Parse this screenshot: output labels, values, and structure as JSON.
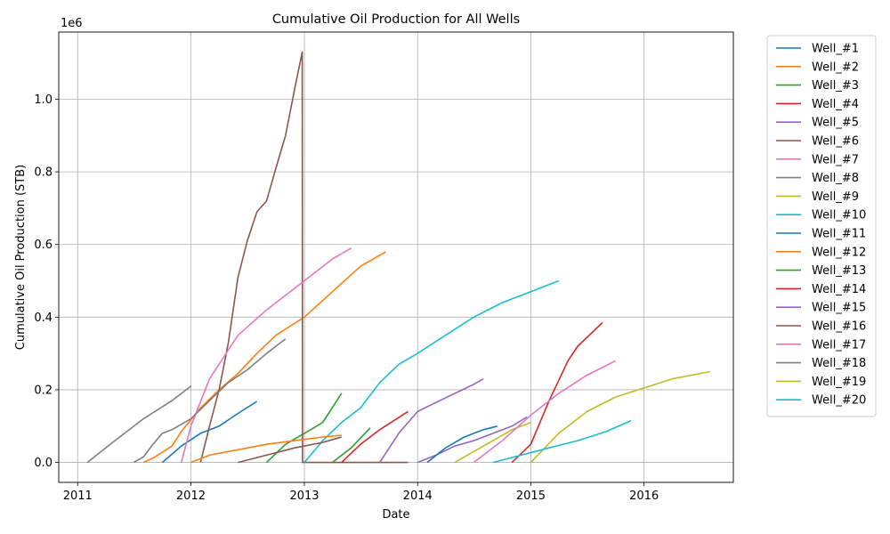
{
  "chart_data": {
    "type": "line",
    "title": "Cumulative Oil Production for All Wells",
    "xlabel": "Date",
    "ylabel": "Cumulative Oil Production (STB)",
    "y_offset_text": "1e6",
    "xlim": [
      "2010-11-01",
      "2016-10-15"
    ],
    "ylim": [
      -55000,
      1185000
    ],
    "x_ticks": [
      {
        "date": "2011-01-01",
        "label": "2011"
      },
      {
        "date": "2012-01-01",
        "label": "2012"
      },
      {
        "date": "2013-01-01",
        "label": "2013"
      },
      {
        "date": "2014-01-01",
        "label": "2014"
      },
      {
        "date": "2015-01-01",
        "label": "2015"
      },
      {
        "date": "2016-01-01",
        "label": "2016"
      }
    ],
    "y_ticks": [
      {
        "value": 0,
        "label": "0.0"
      },
      {
        "value": 200000,
        "label": "0.2"
      },
      {
        "value": 400000,
        "label": "0.4"
      },
      {
        "value": 600000,
        "label": "0.6"
      },
      {
        "value": 800000,
        "label": "0.8"
      },
      {
        "value": 1000000,
        "label": "1.0"
      }
    ],
    "grid": true,
    "legend_position": "outside-right",
    "series": [
      {
        "name": "Well_#1",
        "color": "#1f77b4",
        "points": [
          [
            "2011-10-01",
            0
          ],
          [
            "2011-12-01",
            45000
          ],
          [
            "2012-02-01",
            80000
          ],
          [
            "2012-04-01",
            100000
          ],
          [
            "2012-06-01",
            135000
          ],
          [
            "2012-08-01",
            168000
          ]
        ]
      },
      {
        "name": "Well_#2",
        "color": "#ff7f0e",
        "points": [
          [
            "2011-08-01",
            0
          ],
          [
            "2011-09-01",
            12000
          ],
          [
            "2011-10-01",
            28000
          ],
          [
            "2011-11-01",
            45000
          ],
          [
            "2011-12-01",
            85000
          ],
          [
            "2012-02-01",
            150000
          ],
          [
            "2012-04-01",
            200000
          ],
          [
            "2012-06-01",
            245000
          ],
          [
            "2012-08-01",
            300000
          ],
          [
            "2012-10-01",
            350000
          ],
          [
            "2013-01-01",
            400000
          ],
          [
            "2013-04-01",
            470000
          ],
          [
            "2013-07-01",
            540000
          ],
          [
            "2013-09-20",
            580000
          ]
        ]
      },
      {
        "name": "Well_#3",
        "color": "#2ca02c",
        "points": [
          [
            "2012-09-01",
            0
          ],
          [
            "2012-11-01",
            50000
          ],
          [
            "2013-01-01",
            80000
          ],
          [
            "2013-03-01",
            110000
          ],
          [
            "2013-05-01",
            190000
          ]
        ]
      },
      {
        "name": "Well_#4",
        "color": "#d62728",
        "points": [
          [
            "2014-11-01",
            0
          ],
          [
            "2015-01-01",
            50000
          ],
          [
            "2015-03-01",
            170000
          ],
          [
            "2015-05-01",
            280000
          ],
          [
            "2015-06-01",
            320000
          ],
          [
            "2015-08-20",
            385000
          ]
        ]
      },
      {
        "name": "Well_#5",
        "color": "#9467bd",
        "points": [
          [
            "2014-01-01",
            0
          ],
          [
            "2014-03-01",
            20000
          ],
          [
            "2014-05-01",
            45000
          ],
          [
            "2014-07-01",
            60000
          ],
          [
            "2014-09-01",
            80000
          ],
          [
            "2014-11-01",
            100000
          ],
          [
            "2014-12-20",
            125000
          ]
        ]
      },
      {
        "name": "Well_#6",
        "color": "#8c564b",
        "points": [
          [
            "2012-02-01",
            0
          ],
          [
            "2012-03-01",
            100000
          ],
          [
            "2012-04-01",
            200000
          ],
          [
            "2012-05-01",
            330000
          ],
          [
            "2012-06-01",
            510000
          ],
          [
            "2012-07-01",
            610000
          ],
          [
            "2012-08-01",
            690000
          ],
          [
            "2012-09-01",
            720000
          ],
          [
            "2012-10-01",
            810000
          ],
          [
            "2012-11-01",
            900000
          ],
          [
            "2012-12-01",
            1030000
          ],
          [
            "2012-12-25",
            1130000
          ],
          [
            "2012-12-26",
            0
          ],
          [
            "2013-12-01",
            0
          ]
        ]
      },
      {
        "name": "Well_#7",
        "color": "#e377c2",
        "points": [
          [
            "2011-12-01",
            0
          ],
          [
            "2012-01-01",
            100000
          ],
          [
            "2012-03-01",
            230000
          ],
          [
            "2012-06-01",
            350000
          ],
          [
            "2012-09-01",
            420000
          ],
          [
            "2013-01-01",
            500000
          ],
          [
            "2013-04-01",
            560000
          ],
          [
            "2013-06-01",
            590000
          ]
        ]
      },
      {
        "name": "Well_#8",
        "color": "#7f7f7f",
        "points": [
          [
            "2011-07-01",
            0
          ],
          [
            "2011-08-01",
            15000
          ],
          [
            "2011-09-01",
            50000
          ],
          [
            "2011-10-01",
            80000
          ],
          [
            "2011-11-01",
            90000
          ],
          [
            "2012-01-01",
            120000
          ],
          [
            "2012-03-01",
            170000
          ],
          [
            "2012-05-01",
            220000
          ],
          [
            "2012-07-01",
            255000
          ],
          [
            "2012-09-01",
            300000
          ],
          [
            "2012-11-01",
            340000
          ]
        ]
      },
      {
        "name": "Well_#9",
        "color": "#bcbd22",
        "points": [
          [
            "2014-05-01",
            0
          ],
          [
            "2014-07-01",
            30000
          ],
          [
            "2014-09-01",
            60000
          ],
          [
            "2014-11-01",
            90000
          ],
          [
            "2015-01-01",
            110000
          ]
        ]
      },
      {
        "name": "Well_#10",
        "color": "#17becf",
        "points": [
          [
            "2013-01-01",
            0
          ],
          [
            "2013-03-01",
            60000
          ],
          [
            "2013-05-01",
            110000
          ],
          [
            "2013-07-01",
            150000
          ],
          [
            "2013-09-01",
            220000
          ],
          [
            "2013-11-01",
            270000
          ],
          [
            "2014-01-01",
            300000
          ],
          [
            "2014-04-01",
            350000
          ],
          [
            "2014-07-01",
            400000
          ],
          [
            "2014-10-01",
            440000
          ],
          [
            "2015-01-01",
            470000
          ],
          [
            "2015-04-01",
            500000
          ]
        ]
      },
      {
        "name": "Well_#11",
        "color": "#1f77b4",
        "points": [
          [
            "2014-02-01",
            0
          ],
          [
            "2014-04-01",
            40000
          ],
          [
            "2014-06-01",
            70000
          ],
          [
            "2014-08-01",
            90000
          ],
          [
            "2014-09-15",
            100000
          ]
        ]
      },
      {
        "name": "Well_#12",
        "color": "#ff7f0e",
        "points": [
          [
            "2012-01-01",
            0
          ],
          [
            "2012-03-01",
            20000
          ],
          [
            "2012-06-01",
            35000
          ],
          [
            "2012-09-01",
            50000
          ],
          [
            "2012-12-01",
            60000
          ],
          [
            "2013-03-01",
            70000
          ],
          [
            "2013-05-01",
            75000
          ]
        ]
      },
      {
        "name": "Well_#13",
        "color": "#2ca02c",
        "points": [
          [
            "2013-04-01",
            0
          ],
          [
            "2013-06-01",
            40000
          ],
          [
            "2013-08-01",
            95000
          ]
        ]
      },
      {
        "name": "Well_#14",
        "color": "#d62728",
        "points": [
          [
            "2013-05-01",
            0
          ],
          [
            "2013-07-01",
            50000
          ],
          [
            "2013-09-01",
            90000
          ],
          [
            "2013-12-01",
            140000
          ]
        ]
      },
      {
        "name": "Well_#15",
        "color": "#9467bd",
        "points": [
          [
            "2013-09-01",
            0
          ],
          [
            "2013-11-01",
            80000
          ],
          [
            "2014-01-01",
            140000
          ],
          [
            "2014-03-01",
            165000
          ],
          [
            "2014-05-01",
            190000
          ],
          [
            "2014-07-01",
            215000
          ],
          [
            "2014-08-01",
            230000
          ]
        ]
      },
      {
        "name": "Well_#16",
        "color": "#8c564b",
        "points": [
          [
            "2012-06-01",
            0
          ],
          [
            "2012-09-01",
            20000
          ],
          [
            "2012-12-01",
            40000
          ],
          [
            "2013-03-01",
            55000
          ],
          [
            "2013-05-01",
            70000
          ]
        ]
      },
      {
        "name": "Well_#17",
        "color": "#e377c2",
        "points": [
          [
            "2014-07-01",
            0
          ],
          [
            "2014-10-01",
            60000
          ],
          [
            "2015-01-01",
            130000
          ],
          [
            "2015-04-01",
            190000
          ],
          [
            "2015-07-01",
            240000
          ],
          [
            "2015-10-01",
            280000
          ]
        ]
      },
      {
        "name": "Well_#18",
        "color": "#7f7f7f",
        "points": [
          [
            "2011-02-01",
            0
          ],
          [
            "2011-05-01",
            60000
          ],
          [
            "2011-08-01",
            120000
          ],
          [
            "2011-11-01",
            170000
          ],
          [
            "2012-01-01",
            210000
          ]
        ]
      },
      {
        "name": "Well_#19",
        "color": "#bcbd22",
        "points": [
          [
            "2015-01-01",
            0
          ],
          [
            "2015-04-01",
            80000
          ],
          [
            "2015-07-01",
            140000
          ],
          [
            "2015-10-01",
            180000
          ],
          [
            "2016-01-01",
            205000
          ],
          [
            "2016-04-01",
            230000
          ],
          [
            "2016-08-01",
            250000
          ]
        ]
      },
      {
        "name": "Well_#20",
        "color": "#17becf",
        "points": [
          [
            "2014-09-01",
            0
          ],
          [
            "2014-12-01",
            20000
          ],
          [
            "2015-03-01",
            40000
          ],
          [
            "2015-06-01",
            60000
          ],
          [
            "2015-09-01",
            85000
          ],
          [
            "2015-11-20",
            115000
          ]
        ]
      }
    ]
  }
}
